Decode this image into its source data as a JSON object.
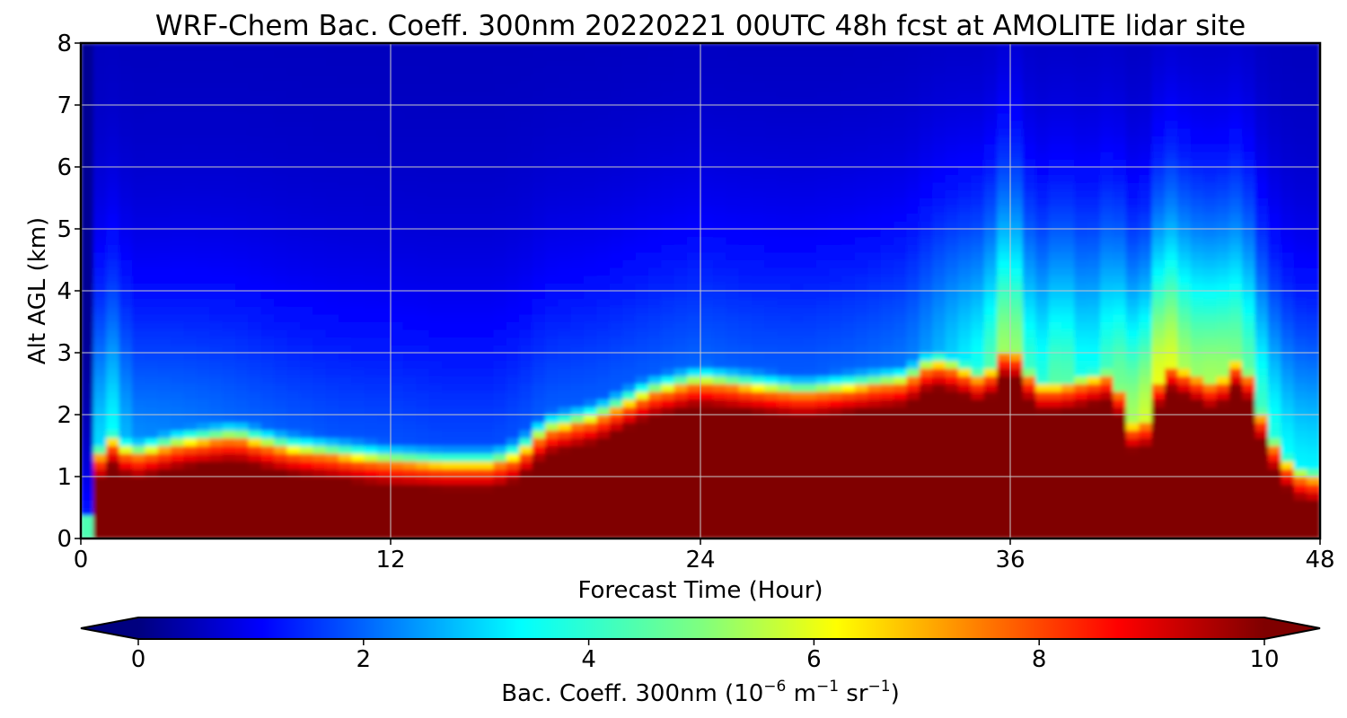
{
  "chart_data": {
    "type": "heatmap",
    "title": "WRF-Chem Bac. Coeff. 300nm  20220221 00UTC 48h fcst at AMOLITE lidar site",
    "xlabel": "Forecast Time (Hour)",
    "ylabel": "Alt AGL (km)",
    "xlim": [
      0,
      48
    ],
    "ylim": [
      0,
      8
    ],
    "xticks": [
      0,
      12,
      24,
      36,
      48
    ],
    "yticks": [
      0,
      1,
      2,
      3,
      4,
      5,
      6,
      7,
      8
    ],
    "grid": true,
    "colormap": "jet",
    "colorbar": {
      "label_prefix": "Bac. Coeff. 300nm  (10",
      "label_exp1": "−6",
      "label_mid": " m",
      "label_exp2": "−1",
      "label_mid2": " sr",
      "label_exp3": "−1",
      "label_suffix": ")",
      "range": [
        0,
        10
      ],
      "ticks": [
        0,
        2,
        4,
        6,
        8,
        10
      ],
      "extend": "both"
    },
    "x_hours": [
      0,
      1,
      2,
      4,
      6,
      8,
      10,
      12,
      14,
      16,
      17,
      18,
      20,
      22,
      24,
      26,
      28,
      30,
      32,
      33,
      34,
      35,
      36,
      37,
      38,
      39,
      40,
      41,
      42,
      43,
      44,
      45,
      46,
      47,
      48
    ],
    "saturated_layer_top_km": [
      0.4,
      1.6,
      1.3,
      1.5,
      1.6,
      1.4,
      1.3,
      1.2,
      1.15,
      1.15,
      1.3,
      1.7,
      1.9,
      2.3,
      2.5,
      2.4,
      2.3,
      2.4,
      2.5,
      2.8,
      2.7,
      2.5,
      3.1,
      2.4,
      2.4,
      2.5,
      2.6,
      1.5,
      2.8,
      2.6,
      2.4,
      2.9,
      1.6,
      1.0,
      0.9
    ],
    "mid_upper_max_value": [
      0.5,
      3.5,
      2.0,
      1.8,
      1.6,
      1.5,
      1.4,
      1.4,
      1.3,
      1.3,
      1.4,
      1.5,
      1.5,
      1.5,
      1.6,
      1.5,
      1.5,
      1.6,
      1.8,
      2.2,
      2.8,
      3.5,
      5.0,
      3.2,
      4.2,
      3.0,
      4.0,
      5.0,
      5.5,
      4.5,
      4.8,
      4.2,
      3.5,
      3.0,
      3.0
    ]
  }
}
